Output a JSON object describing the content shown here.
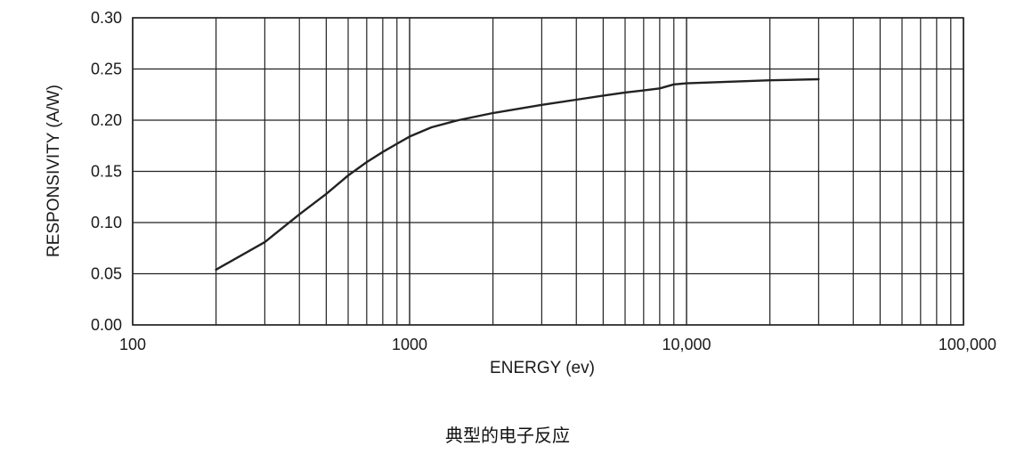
{
  "chart_data": {
    "type": "line",
    "title": "",
    "xlabel": "ENERGY (ev)",
    "ylabel": "RESPONSIVITY (A/W)",
    "caption": "典型的电子反应",
    "x_scale": "log",
    "xlim": [
      100,
      100000
    ],
    "ylim": [
      0,
      0.3
    ],
    "x_ticks": [
      {
        "value": 100,
        "label": "100"
      },
      {
        "value": 1000,
        "label": "1000"
      },
      {
        "value": 10000,
        "label": "10,000"
      },
      {
        "value": 100000,
        "label": "100,000"
      }
    ],
    "y_ticks": [
      {
        "value": 0.0,
        "label": "0.00"
      },
      {
        "value": 0.05,
        "label": "0.05"
      },
      {
        "value": 0.1,
        "label": "0.10"
      },
      {
        "value": 0.15,
        "label": "0.15"
      },
      {
        "value": 0.2,
        "label": "0.20"
      },
      {
        "value": 0.25,
        "label": "0.25"
      },
      {
        "value": 0.3,
        "label": "0.30"
      }
    ],
    "grid": true,
    "legend": "none",
    "line_color": "#222222",
    "series": [
      {
        "x": [
          200,
          300,
          400,
          500,
          600,
          700,
          800,
          900,
          1000,
          1200,
          1500,
          2000,
          3000,
          4000,
          5000,
          6000,
          7000,
          8000,
          9000,
          10000,
          20000,
          30000
        ],
        "values": [
          0.054,
          0.081,
          0.108,
          0.128,
          0.146,
          0.159,
          0.169,
          0.177,
          0.184,
          0.193,
          0.2,
          0.207,
          0.215,
          0.22,
          0.224,
          0.227,
          0.229,
          0.231,
          0.235,
          0.236,
          0.239,
          0.24
        ]
      }
    ]
  }
}
